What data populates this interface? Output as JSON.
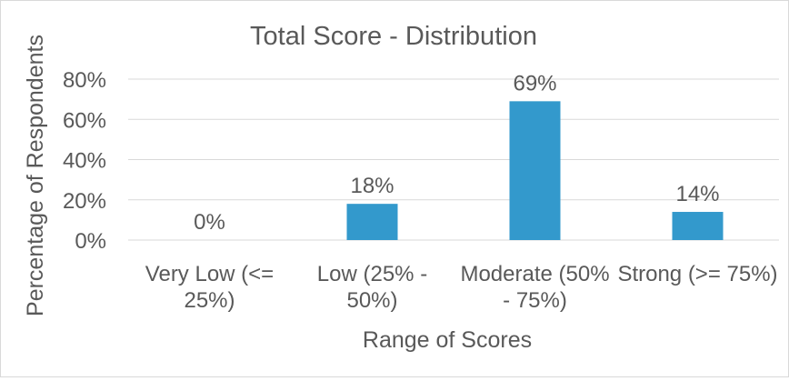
{
  "chart_data": {
    "type": "bar",
    "title": "Total Score - Distribution",
    "xlabel": "Range of Scores",
    "ylabel": "Percentage of Respondents",
    "categories": [
      [
        "Very Low (<=",
        "25%)"
      ],
      [
        "Low (25% -",
        "50%)"
      ],
      [
        "Moderate (50%",
        "- 75%)"
      ],
      [
        "Strong (>= 75%)"
      ]
    ],
    "values": [
      0,
      18,
      69,
      14
    ],
    "data_labels": [
      "0%",
      "18%",
      "69%",
      "14%"
    ],
    "yticks": [
      0,
      20,
      40,
      60,
      80
    ],
    "ytick_labels": [
      "0%",
      "20%",
      "40%",
      "60%",
      "80%"
    ],
    "ylim": [
      0,
      80
    ],
    "grid": true,
    "legend": "none",
    "colors": {
      "bar": "#3399cc",
      "grid": "#d9d9d9",
      "text": "#595959"
    }
  }
}
